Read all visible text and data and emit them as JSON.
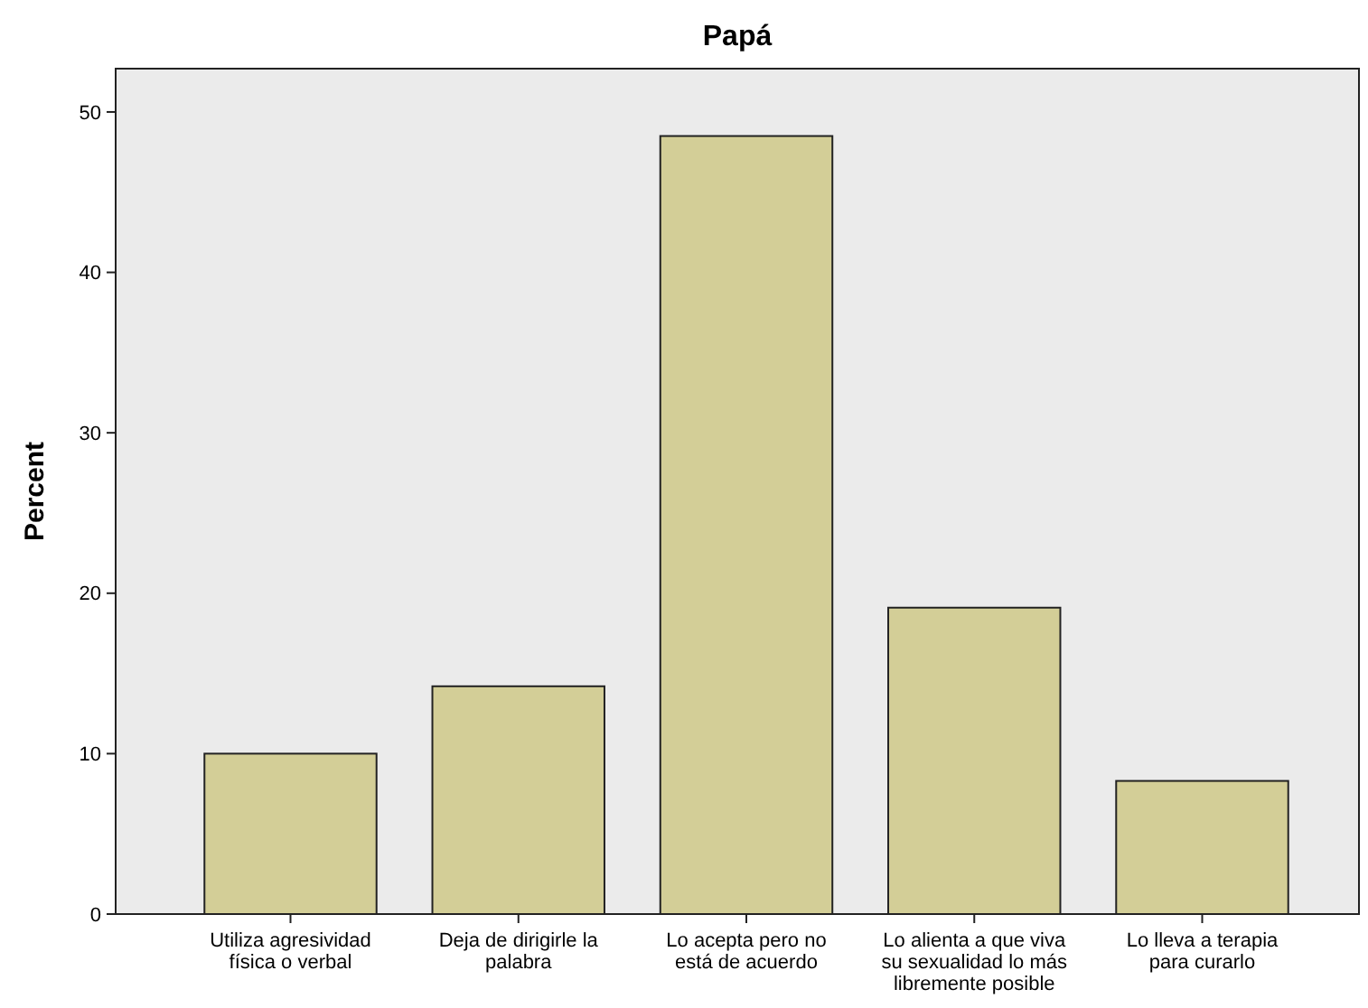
{
  "chart_data": {
    "type": "bar",
    "title": "Papá",
    "ylabel": "Percent",
    "categories": [
      "Utiliza agresividad física o verbal",
      "Deja de dirigirle la palabra",
      "Lo acepta pero no está de acuerdo",
      "Lo alienta a que viva su sexualidad lo más libremente posible",
      "Lo lleva a terapia para curarlo"
    ],
    "values": [
      10.0,
      14.2,
      48.5,
      19.1,
      8.3
    ],
    "color": "#d3ce97",
    "ylim": [
      0,
      52.7
    ],
    "yticks": [
      0,
      10,
      20,
      30,
      40,
      50
    ],
    "grid": false
  }
}
